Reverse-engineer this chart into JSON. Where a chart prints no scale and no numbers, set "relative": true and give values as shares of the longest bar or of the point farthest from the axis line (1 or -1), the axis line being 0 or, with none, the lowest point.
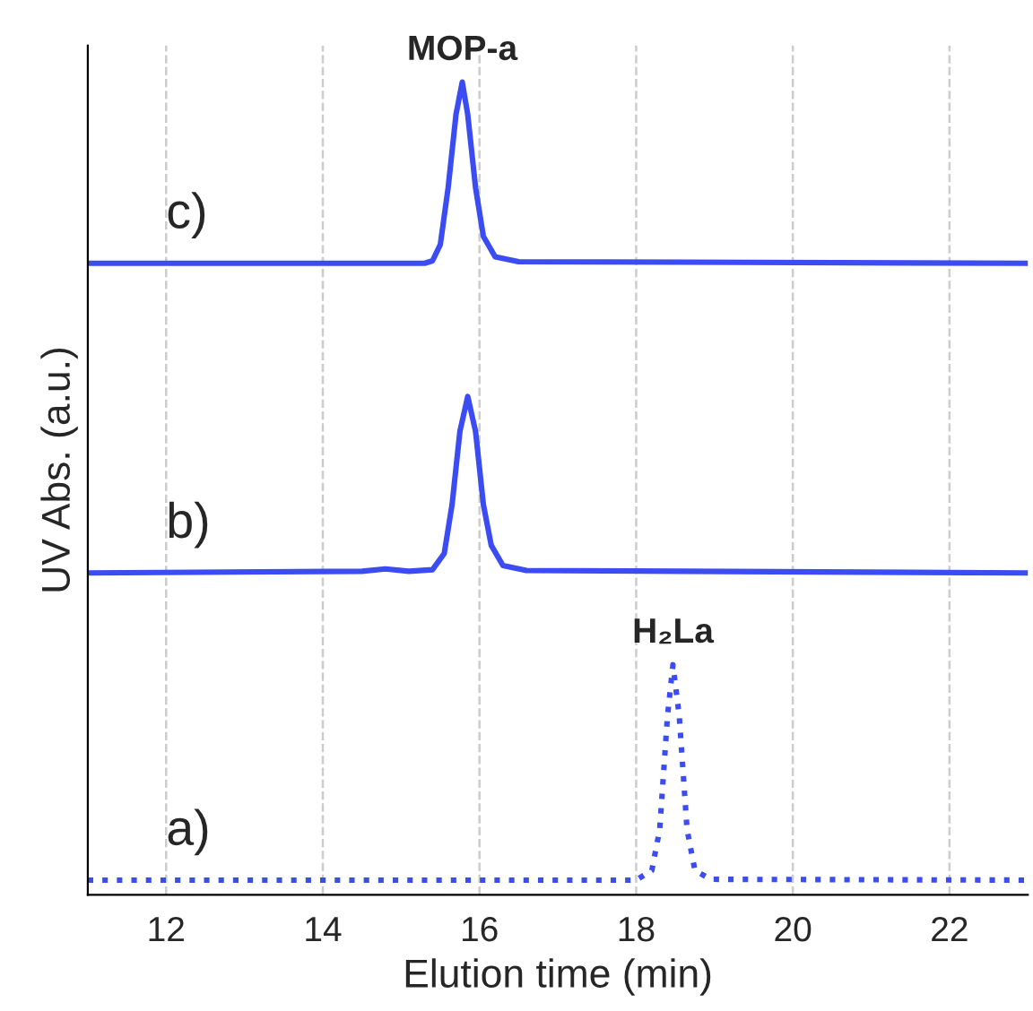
{
  "chart_data": {
    "type": "line",
    "relative": true,
    "xlabel": "Elution time (min)",
    "ylabel": "UV Abs. (a.u.)",
    "xlim": [
      11,
      23
    ],
    "xticks": [
      12,
      14,
      16,
      18,
      20,
      22
    ],
    "grid": "x",
    "legend": false,
    "series": [
      {
        "color": "#3a4cf2",
        "line_style": "dotted",
        "x": [
          11,
          18.0,
          18.2,
          18.3,
          18.4,
          18.47,
          18.55,
          18.65,
          18.75,
          18.95,
          23
        ],
        "values": [
          0.018,
          0.018,
          0.03,
          0.08,
          0.22,
          0.283,
          0.22,
          0.08,
          0.03,
          0.019,
          0.018
        ]
      },
      {
        "color": "#3a4cf2",
        "line_style": "solid",
        "x": [
          11,
          14.5,
          14.8,
          15.1,
          15.4,
          15.55,
          15.65,
          15.75,
          15.85,
          15.95,
          16.05,
          16.15,
          16.3,
          16.6,
          23
        ],
        "values": [
          0.396,
          0.398,
          0.401,
          0.398,
          0.4,
          0.42,
          0.48,
          0.57,
          0.613,
          0.57,
          0.48,
          0.43,
          0.405,
          0.399,
          0.396
        ]
      },
      {
        "color": "#3a4cf2",
        "line_style": "solid",
        "x": [
          11,
          15.3,
          15.4,
          15.5,
          15.6,
          15.7,
          15.78,
          15.85,
          15.95,
          16.05,
          16.2,
          16.5,
          23
        ],
        "values": [
          0.777,
          0.777,
          0.78,
          0.8,
          0.87,
          0.96,
          1.0,
          0.96,
          0.87,
          0.81,
          0.785,
          0.779,
          0.777
        ]
      }
    ],
    "annotations": [
      {
        "text": "a)",
        "x": 12,
        "y": 0.018
      },
      {
        "text": "b)",
        "x": 12,
        "y": 0.396
      },
      {
        "text": "c)",
        "x": 12,
        "y": 0.777
      },
      {
        "text": "H₂La",
        "x": 18.47,
        "y": 0.283
      },
      {
        "text": "MOP-a",
        "x": 15.78,
        "y": 1.0
      }
    ]
  }
}
